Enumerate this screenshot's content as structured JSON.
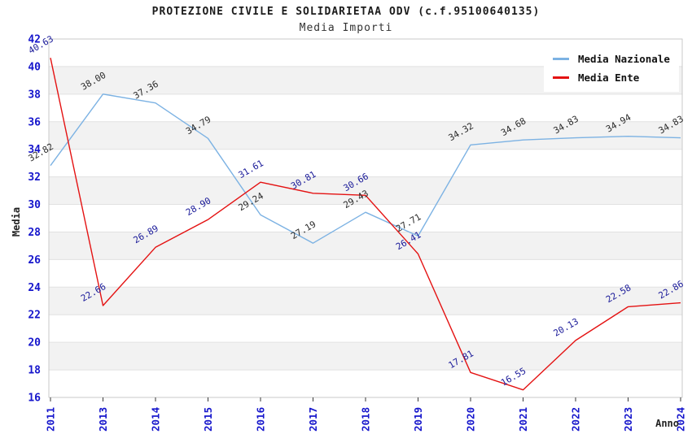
{
  "chart_data": {
    "type": "line",
    "title": "PROTEZIONE CIVILE E SOLIDARIETAA ODV (c.f.95100640135)",
    "subtitle": "Media Importi",
    "xlabel": "Anno",
    "ylabel": "Media",
    "categories": [
      "2011",
      "2013",
      "2014",
      "2015",
      "2016",
      "2017",
      "2018",
      "2019",
      "2020",
      "2021",
      "2022",
      "2023",
      "2024"
    ],
    "series": [
      {
        "name": "Media Nazionale",
        "color": "#7cb2e3",
        "label_color": "#2b2b2b",
        "values": [
          32.82,
          38.0,
          37.36,
          34.79,
          29.24,
          27.19,
          29.43,
          27.71,
          34.32,
          34.68,
          34.83,
          34.94,
          34.83
        ]
      },
      {
        "name": "Media Ente",
        "color": "#e41212",
        "label_color": "#1a1a99",
        "values": [
          40.63,
          22.66,
          26.89,
          28.9,
          31.61,
          30.81,
          30.66,
          26.41,
          17.81,
          16.55,
          20.13,
          22.58,
          22.86
        ]
      }
    ],
    "ylim": [
      16,
      42
    ],
    "ytick_step": 2,
    "grid": true,
    "legend_position": "top-right",
    "band_color": "#f2f2f2",
    "grid_color": "#e1e1e1",
    "border_color": "#c9c9c9",
    "axis_tick_label_color": "#1616cc",
    "tick_color": "#3a3a3a"
  }
}
